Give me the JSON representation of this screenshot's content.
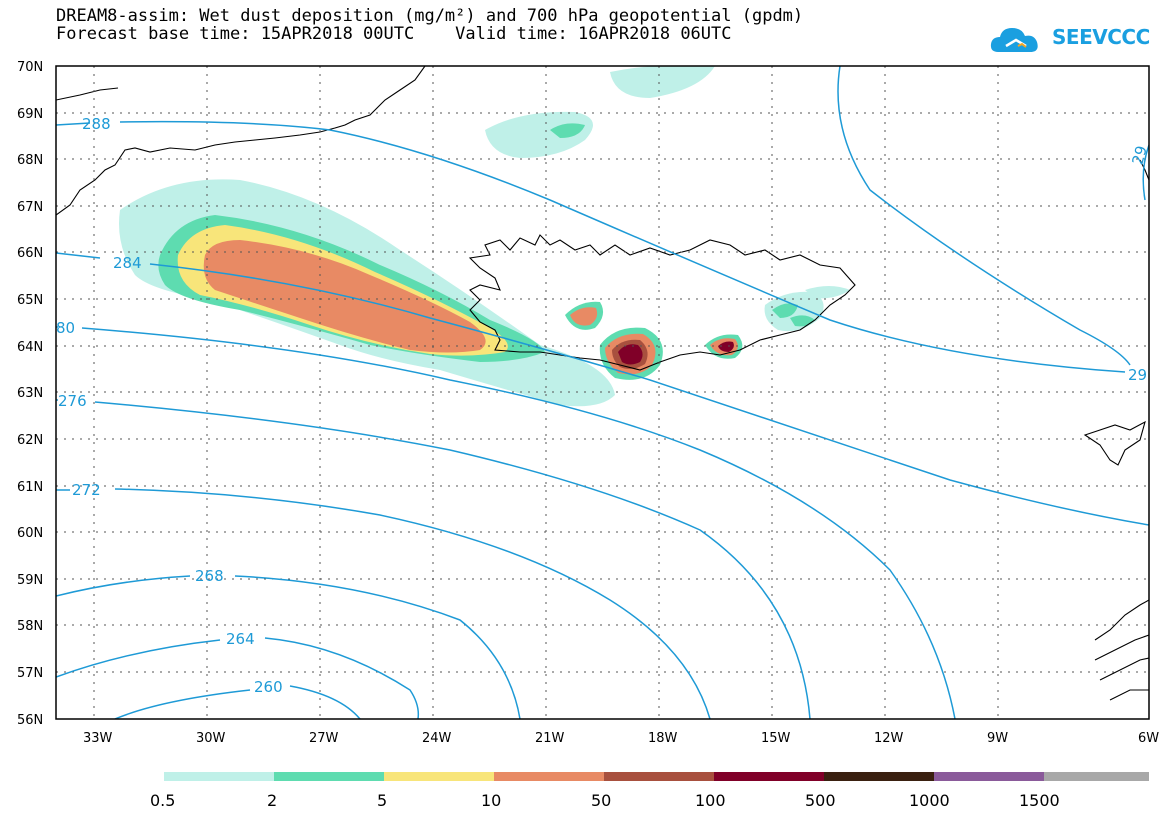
{
  "title": {
    "line1": "DREAM8-assim: Wet dust deposition (mg/m²) and 700 hPa geopotential (gpdm)",
    "line2": "Forecast base time: 15APR2018 00UTC    Valid time: 16APR2018 06UTC"
  },
  "logo": {
    "text": "SEEVCCC",
    "icon": "cloud-icon"
  },
  "axes": {
    "lat_labels": [
      "70N",
      "69N",
      "68N",
      "67N",
      "66N",
      "65N",
      "64N",
      "63N",
      "62N",
      "61N",
      "60N",
      "59N",
      "58N",
      "57N",
      "56N"
    ],
    "lon_labels": [
      "33W",
      "30W",
      "27W",
      "24W",
      "21W",
      "18W",
      "15W",
      "12W",
      "9W",
      "6W"
    ]
  },
  "contours": {
    "color": "#1e9ad6",
    "labels": [
      "288",
      "284",
      "80",
      "276",
      "272",
      "268",
      "264",
      "260",
      "29",
      "29"
    ]
  },
  "legend": {
    "labels": [
      "0.5",
      "2",
      "5",
      "10",
      "50",
      "100",
      "500",
      "1000",
      "1500"
    ],
    "colors": [
      "#bff0e8",
      "#5edcb0",
      "#f8e57a",
      "#e88a64",
      "#a8503e",
      "#800028",
      "#3a2010",
      "#8a5a9a",
      "#a8a8a8"
    ]
  }
}
